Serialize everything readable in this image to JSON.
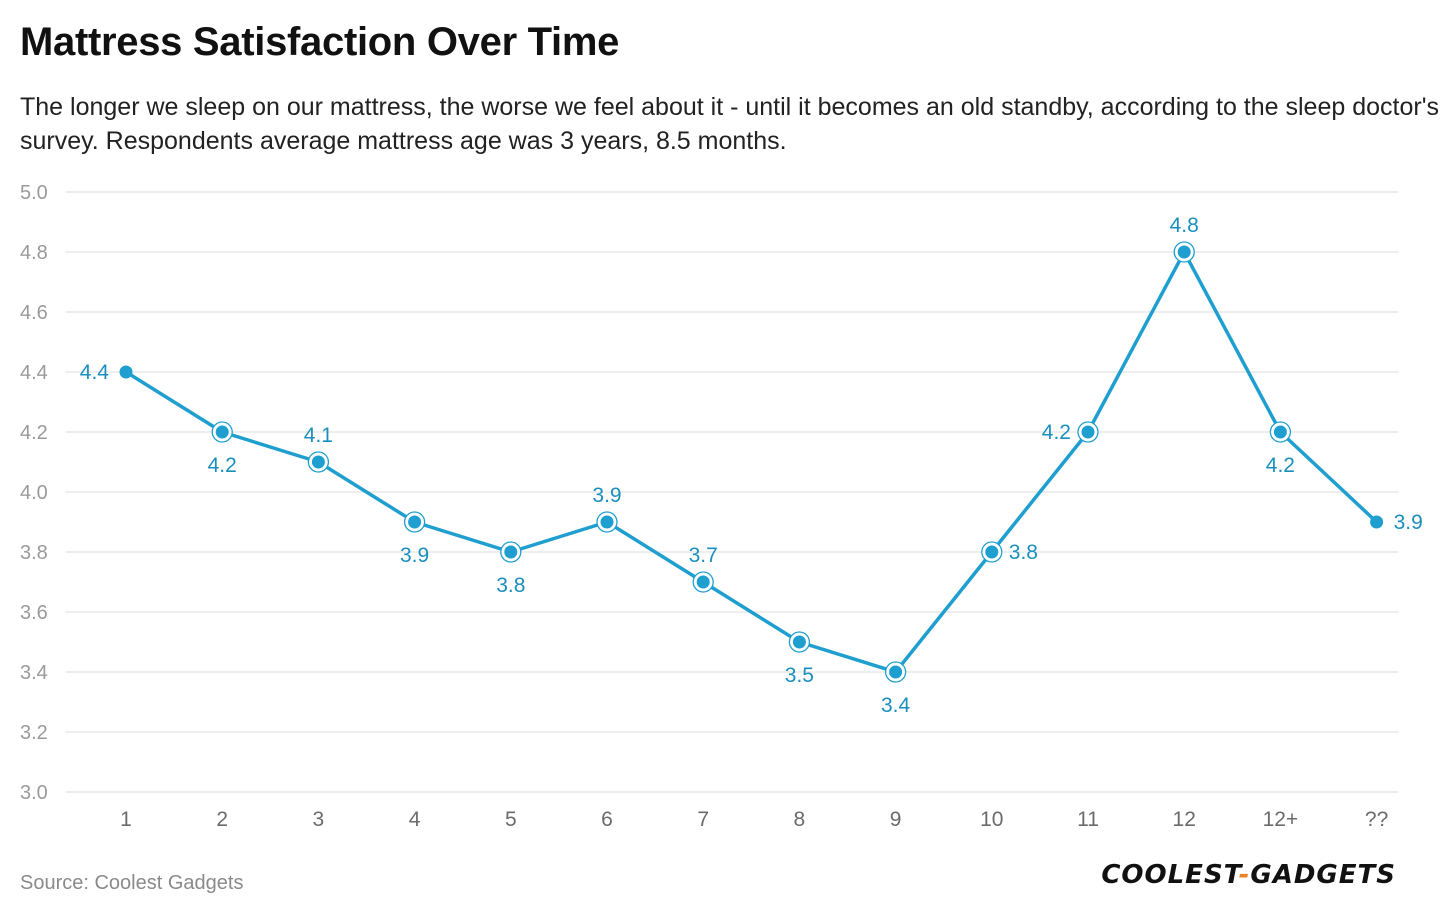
{
  "header": {
    "title": "Mattress Satisfaction Over Time",
    "subtitle": "The longer we sleep on our mattress, the worse we feel about it - until it becomes an old standby, according to the sleep doctor's survey. Respondents average mattress age was 3 years, 8.5 months."
  },
  "footer": {
    "source": "Source: Coolest Gadgets",
    "logo_left": "COOLEST",
    "logo_dash": "-",
    "logo_right": "GADGETS"
  },
  "colors": {
    "line": "#1f9fcf",
    "label": "#1a8fbd",
    "grid": "#e3e3e3"
  },
  "chart_data": {
    "type": "line",
    "title": "Mattress Satisfaction Over Time",
    "xlabel": "",
    "ylabel": "",
    "ylim": [
      3.0,
      5.0
    ],
    "yticks": [
      "5.0",
      "4.8",
      "4.6",
      "4.4",
      "4.2",
      "4.0",
      "3.8",
      "3.6",
      "3.4",
      "3.2",
      "3.0"
    ],
    "categories": [
      "1",
      "2",
      "3",
      "4",
      "5",
      "6",
      "7",
      "8",
      "9",
      "10",
      "11",
      "12",
      "12+",
      "??"
    ],
    "values": [
      4.4,
      4.2,
      4.1,
      3.9,
      3.8,
      3.9,
      3.7,
      3.5,
      3.4,
      3.8,
      4.2,
      4.8,
      4.2,
      3.9
    ],
    "labels": [
      "4.4",
      "4.2",
      "4.1",
      "3.9",
      "3.8",
      "3.9",
      "3.7",
      "3.5",
      "3.4",
      "3.8",
      "4.2",
      "4.8",
      "4.2",
      "3.9"
    ],
    "label_positions": [
      "left",
      "below",
      "above",
      "below",
      "below",
      "above",
      "above",
      "below",
      "below",
      "right",
      "left",
      "above",
      "below",
      "right"
    ]
  }
}
